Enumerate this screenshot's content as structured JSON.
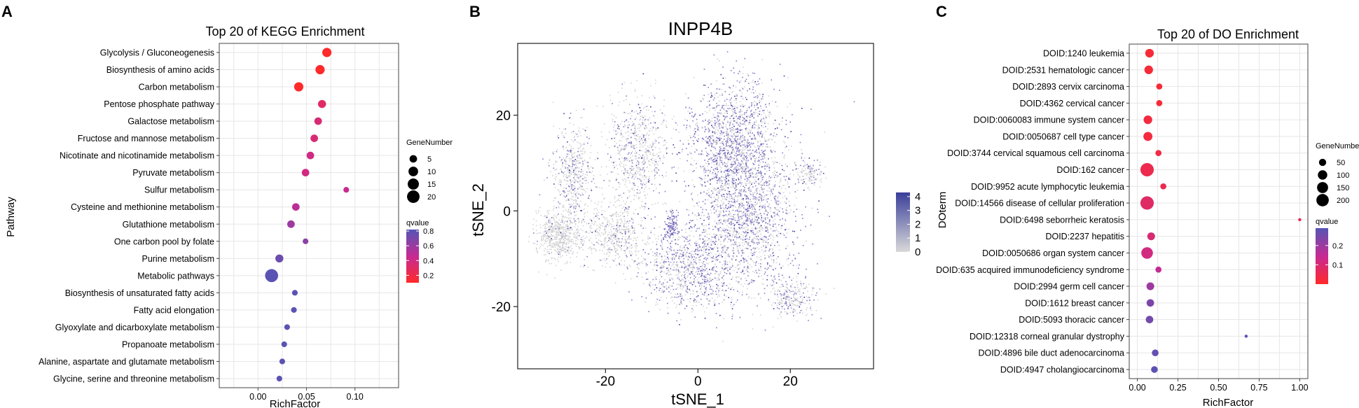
{
  "panels": {
    "a": "A",
    "b": "B",
    "c": "C"
  },
  "chart_data": [
    {
      "type": "scatter",
      "title": "Top 20 of KEGG Enrichment",
      "xlabel": "RichFactor",
      "ylabel": "Pathway",
      "xlim": [
        -0.04,
        0.145
      ],
      "xticks": [
        0.0,
        0.05,
        0.1
      ],
      "xtick_labels": [
        "0.00",
        "0.05",
        "0.10"
      ],
      "grid": true,
      "categories": [
        "Glycolysis / Gluconeogenesis",
        "Biosynthesis of amino acids",
        "Carbon metabolism",
        "Pentose phosphate pathway",
        "Galactose metabolism",
        "Fructose and mannose metabolism",
        "Nicotinate and nicotinamide metabolism",
        "Pyruvate metabolism",
        "Sulfur metabolism",
        "Cysteine and methionine metabolism",
        "Glutathione metabolism",
        "One carbon pool by folate",
        "Purine metabolism",
        "Metabolic pathways",
        "Biosynthesis of unsaturated fatty acids",
        "Fatty acid elongation",
        "Glyoxylate and dicarboxylate metabolism",
        "Propanoate metabolism",
        "Alanine, aspartate and glutamate metabolism",
        "Glycine, serine and threonine metabolism"
      ],
      "x": [
        0.071,
        0.064,
        0.042,
        0.066,
        0.062,
        0.058,
        0.054,
        0.049,
        0.091,
        0.039,
        0.034,
        0.049,
        0.022,
        0.014,
        0.038,
        0.037,
        0.03,
        0.027,
        0.025,
        0.022
      ],
      "gene_number": [
        9,
        9,
        9,
        6,
        5,
        5,
        5,
        5,
        2,
        5,
        5,
        2,
        6,
        22,
        2,
        2,
        2,
        2,
        2,
        2
      ],
      "qvalue": [
        0.1,
        0.1,
        0.1,
        0.3,
        0.35,
        0.35,
        0.4,
        0.4,
        0.45,
        0.5,
        0.6,
        0.65,
        0.75,
        0.8,
        0.8,
        0.8,
        0.8,
        0.8,
        0.8,
        0.8
      ],
      "size_legend": {
        "title": "GeneNumber",
        "values": [
          5,
          10,
          15,
          20
        ]
      },
      "color_legend": {
        "title": "qvalue",
        "ticks": [
          0.8,
          0.6,
          0.4,
          0.2
        ],
        "tick_labels": [
          "0.8",
          "0.6",
          "0.4",
          "0.2"
        ],
        "low_color": "#ff2a2a",
        "mid_color": "#c72a93",
        "high_color": "#5555b5"
      }
    },
    {
      "type": "scatter",
      "title": "INPP4B",
      "xlabel": "tSNE_1",
      "ylabel": "tSNE_2",
      "xlim": [
        -39,
        38
      ],
      "ylim": [
        -33,
        35
      ],
      "xticks": [
        -20,
        0,
        20
      ],
      "xtick_labels": [
        "-20",
        "0",
        "20"
      ],
      "yticks": [
        20,
        0,
        -20
      ],
      "ytick_labels": [
        "20",
        "0",
        "-20"
      ],
      "grid": false,
      "color_legend": {
        "ticks": [
          4,
          3,
          2,
          1,
          0
        ],
        "tick_labels": [
          "4",
          "3",
          "2",
          "1",
          "0"
        ],
        "low_color": "#d9d9d9",
        "high_color": "#3a3f9a"
      }
    },
    {
      "type": "scatter",
      "title": "Top 20 of DO Enrichment",
      "xlabel": "RichFactor",
      "ylabel": "DOterm",
      "xlim": [
        -0.05,
        1.05
      ],
      "xticks": [
        0.0,
        0.25,
        0.5,
        0.75,
        1.0
      ],
      "xtick_labels": [
        "0.00",
        "0.25",
        "0.50",
        "0.75",
        "1.00"
      ],
      "grid": true,
      "categories": [
        "DOID:1240 leukemia",
        "DOID:2531 hematologic cancer",
        "DOID:2893 cervix carcinoma",
        "DOID:4362 cervical cancer",
        "DOID:0060083 immune system cancer",
        "DOID:0050687 cell type cancer",
        "DOID:3744 cervical squamous cell carcinoma",
        "DOID:162 cancer",
        "DOID:9952 acute lymphocytic leukemia",
        "DOID:14566 disease of cellular proliferation",
        "DOID:6498 seborrheic keratosis",
        "DOID:2237 hepatitis",
        "DOID:0050686 organ system cancer",
        "DOID:635 acquired immunodeficiency syndrome",
        "DOID:2994 germ cell cancer",
        "DOID:1612 breast cancer",
        "DOID:5093 thoracic cancer",
        "DOID:12318 corneal granular dystrophy",
        "DOID:4896 bile duct adenocarcinoma",
        "DOID:4947 cholangiocarcinoma"
      ],
      "x": [
        0.075,
        0.07,
        0.135,
        0.135,
        0.065,
        0.065,
        0.13,
        0.06,
        0.16,
        0.06,
        1.0,
        0.085,
        0.06,
        0.13,
        0.08,
        0.08,
        0.075,
        0.67,
        0.11,
        0.105
      ],
      "gene_number": [
        80,
        80,
        30,
        30,
        80,
        90,
        30,
        240,
        30,
        240,
        2,
        60,
        170,
        30,
        60,
        55,
        55,
        2,
        40,
        40
      ],
      "qvalue": [
        0.02,
        0.02,
        0.02,
        0.02,
        0.03,
        0.03,
        0.04,
        0.05,
        0.05,
        0.08,
        0.05,
        0.1,
        0.12,
        0.15,
        0.2,
        0.24,
        0.25,
        0.27,
        0.27,
        0.28
      ],
      "size_legend": {
        "title": "GeneNumber",
        "values": [
          50,
          100,
          150,
          200
        ]
      },
      "color_legend": {
        "title": "qvalue",
        "ticks": [
          0.2,
          0.1
        ],
        "tick_labels": [
          "0.2",
          "0.1"
        ],
        "low_color": "#ff2a2a",
        "mid_color": "#c72a93",
        "high_color": "#5555b5"
      }
    }
  ]
}
